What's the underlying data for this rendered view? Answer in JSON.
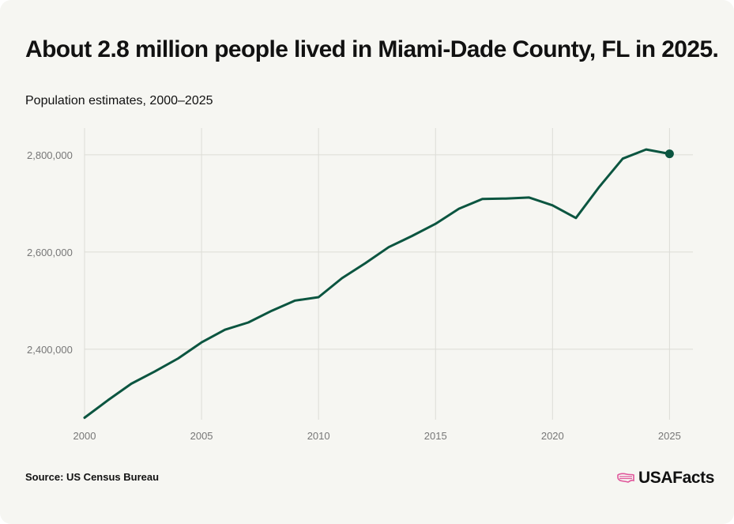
{
  "header": {
    "title": "About 2.8 million people lived in Miami-Dade County, FL in 2025.",
    "subtitle": "Population estimates, 2000–2025"
  },
  "footer": {
    "source": "Source: US Census Bureau",
    "brand": "USAFacts",
    "brand_icon": "us-map-flag-icon"
  },
  "colors": {
    "background": "#f6f6f2",
    "line": "#0b5540",
    "grid": "#dcdcd6",
    "tick_text": "#777777",
    "brand_accent": "#e0559a"
  },
  "chart_data": {
    "type": "line",
    "title": "About 2.8 million people lived in Miami-Dade County, FL in 2025.",
    "subtitle": "Population estimates, 2000–2025",
    "xlabel": "",
    "ylabel": "",
    "x": [
      2000,
      2001,
      2002,
      2003,
      2004,
      2005,
      2006,
      2007,
      2008,
      2009,
      2010,
      2011,
      2012,
      2013,
      2014,
      2015,
      2016,
      2017,
      2018,
      2019,
      2020,
      2021,
      2022,
      2023,
      2024,
      2025
    ],
    "series": [
      {
        "values": [
          2259000,
          2295000,
          2329000,
          2354000,
          2381000,
          2414000,
          2440000,
          2455000,
          2479000,
          2500000,
          2507000,
          2546000,
          2577000,
          2610000,
          2633000,
          2658000,
          2689000,
          2709000,
          2710000,
          2712000,
          2696000,
          2670000,
          2734000,
          2792000,
          2811000,
          2802000
        ]
      }
    ],
    "xlim": [
      2000,
      2026
    ],
    "ylim": [
      2255000,
      2855000
    ],
    "xticks": [
      2000,
      2005,
      2010,
      2015,
      2020,
      2025
    ],
    "xtick_labels": [
      "2000",
      "2005",
      "2010",
      "2015",
      "2020",
      "2025"
    ],
    "yticks": [
      2400000,
      2600000,
      2800000
    ],
    "ytick_labels": [
      "2,400,000",
      "2,600,000",
      "2,800,000"
    ],
    "grid": true,
    "legend": "none",
    "highlight_last_point": true
  }
}
